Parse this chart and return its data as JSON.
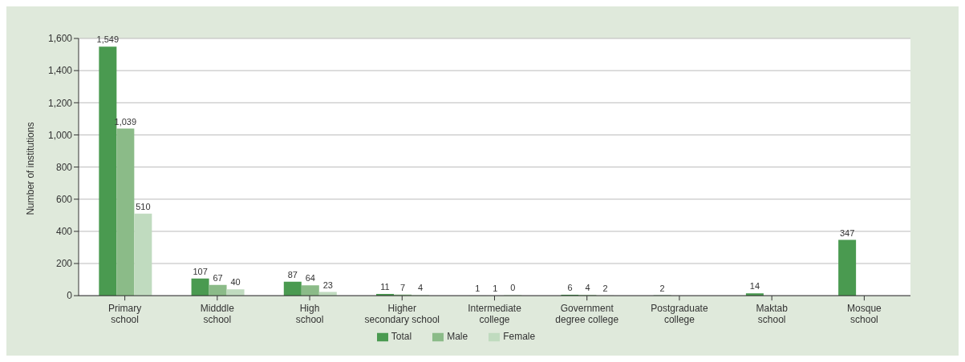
{
  "chart_data": {
    "type": "bar",
    "ylabel": "Number of institutions",
    "categories": [
      "Primary school",
      "Midddle school",
      "High school",
      "Higher secondary school",
      "Intermediate college",
      "Government degree college",
      "Postgraduate college",
      "Maktab school",
      "Mosque school"
    ],
    "series": [
      {
        "name": "Total",
        "color": "#4a9a50",
        "values": [
          1549,
          107,
          87,
          11,
          1,
          6,
          2,
          14,
          347
        ],
        "value_labels": [
          "1,549",
          "107",
          "87",
          "11",
          "1",
          "6",
          "2",
          "14",
          "347"
        ]
      },
      {
        "name": "Male",
        "color": "#8bbb88",
        "values": [
          1039,
          67,
          64,
          7,
          1,
          4,
          null,
          null,
          null
        ],
        "value_labels": [
          "1,039",
          "67",
          "64",
          "7",
          "1",
          "4",
          null,
          null,
          null
        ]
      },
      {
        "name": "Female",
        "color": "#c0dbbf",
        "values": [
          510,
          40,
          23,
          4,
          0,
          2,
          null,
          null,
          null
        ],
        "value_labels": [
          "510",
          "40",
          "23",
          "4",
          "0",
          "2",
          null,
          null,
          null
        ]
      }
    ],
    "ylim": [
      0,
      1600
    ],
    "yticks": [
      0,
      200,
      400,
      600,
      800,
      {
        "value": 1000,
        "label": "1,000"
      },
      {
        "value": 1200,
        "label": "1,200"
      },
      {
        "value": 1400,
        "label": "1,400"
      },
      {
        "value": 1600,
        "label": "1,600"
      }
    ],
    "grid": "y",
    "legend": "bottom"
  }
}
